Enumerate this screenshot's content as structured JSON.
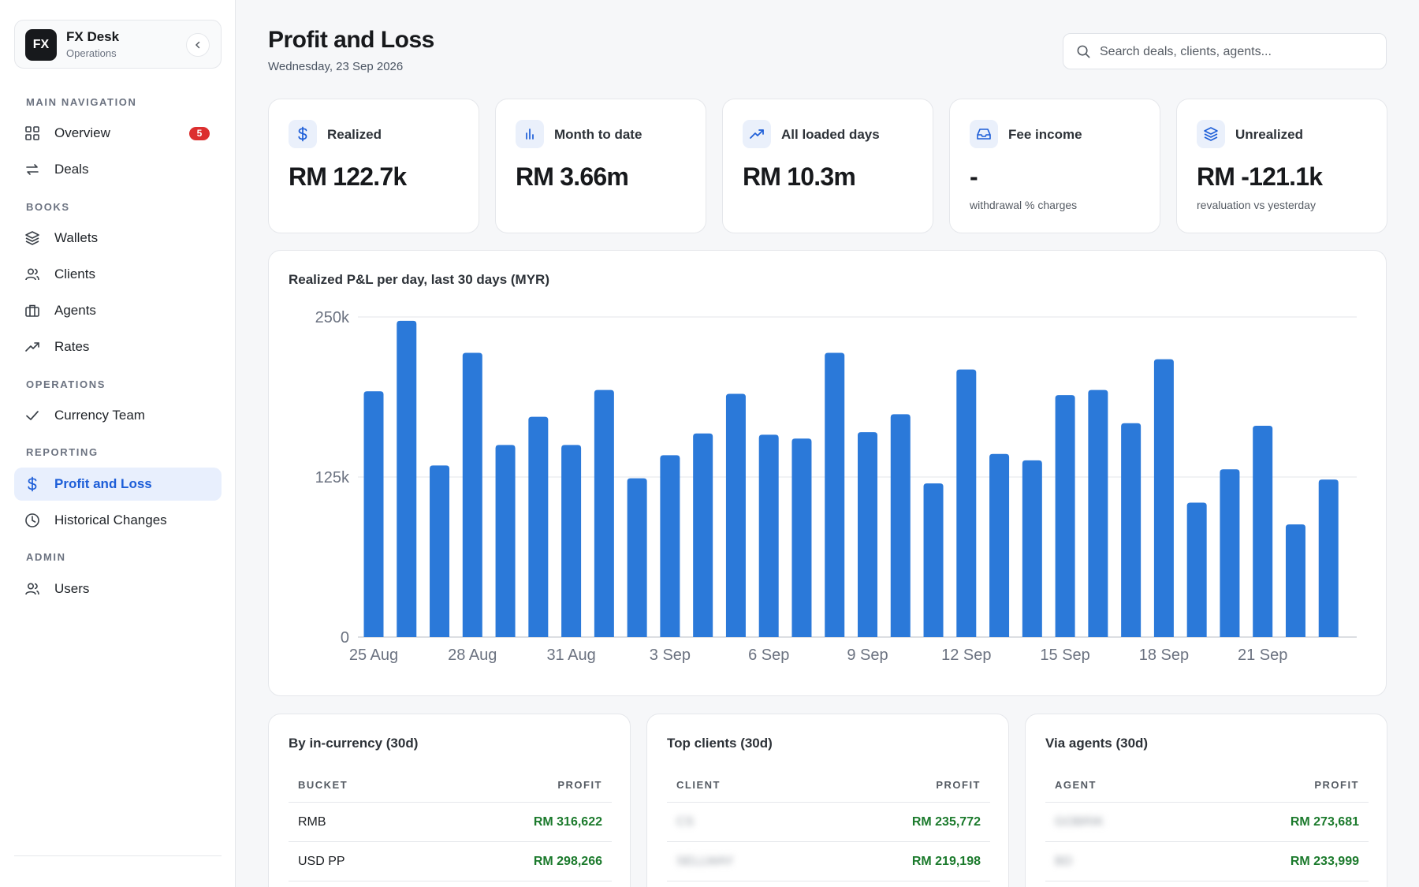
{
  "brand": {
    "logo": "FX",
    "name": "FX Desk",
    "subtitle": "Operations"
  },
  "sidebar": {
    "sections": [
      {
        "label": "MAIN NAVIGATION"
      },
      {
        "label": "BOOKS"
      },
      {
        "label": "OPERATIONS"
      },
      {
        "label": "REPORTING"
      },
      {
        "label": "ADMIN"
      }
    ],
    "items": [
      {
        "label": "Overview",
        "icon": "grid-icon",
        "badge": "5"
      },
      {
        "label": "Deals",
        "icon": "swap-icon"
      },
      {
        "label": "Wallets",
        "icon": "layers-icon"
      },
      {
        "label": "Clients",
        "icon": "users-icon"
      },
      {
        "label": "Agents",
        "icon": "briefcase-icon"
      },
      {
        "label": "Rates",
        "icon": "trend-icon"
      },
      {
        "label": "Currency Team",
        "icon": "check-icon"
      },
      {
        "label": "Profit and Loss",
        "icon": "dollar-icon",
        "active": true
      },
      {
        "label": "Historical Changes",
        "icon": "clock-icon"
      },
      {
        "label": "Users",
        "icon": "users-icon"
      }
    ]
  },
  "header": {
    "title": "Profit and Loss",
    "date": "Wednesday, 23 Sep 2026",
    "search_placeholder": "Search deals, clients, agents..."
  },
  "kpis": [
    {
      "label": "Realized",
      "value": "RM 122.7k",
      "sub": "",
      "icon": "dollar-icon"
    },
    {
      "label": "Month to date",
      "value": "RM 3.66m",
      "sub": "",
      "icon": "bar-chart-icon"
    },
    {
      "label": "All loaded days",
      "value": "RM 10.3m",
      "sub": "",
      "icon": "trend-icon"
    },
    {
      "label": "Fee income",
      "value": "-",
      "sub": "withdrawal % charges",
      "icon": "inbox-icon"
    },
    {
      "label": "Unrealized",
      "value": "RM -121.1k",
      "sub": "revaluation vs yesterday",
      "icon": "layers-icon"
    }
  ],
  "colors": {
    "accent": "#1d5ed8",
    "bar": "#2b79d9",
    "profit": "#1b7a2c",
    "badge": "#dc2f2f"
  },
  "chart_data": {
    "type": "bar",
    "title": "Realized P&L per day, last 30 days (MYR)",
    "categories": [
      "25 Aug",
      "26 Aug",
      "27 Aug",
      "28 Aug",
      "29 Aug",
      "30 Aug",
      "31 Aug",
      "1 Sep",
      "2 Sep",
      "3 Sep",
      "4 Sep",
      "5 Sep",
      "6 Sep",
      "7 Sep",
      "8 Sep",
      "9 Sep",
      "10 Sep",
      "11 Sep",
      "12 Sep",
      "13 Sep",
      "14 Sep",
      "15 Sep",
      "16 Sep",
      "17 Sep",
      "18 Sep",
      "19 Sep",
      "20 Sep",
      "21 Sep",
      "22 Sep",
      "23 Sep"
    ],
    "tick_labels": [
      "25 Aug",
      "28 Aug",
      "31 Aug",
      "3 Sep",
      "6 Sep",
      "9 Sep",
      "12 Sep",
      "15 Sep",
      "18 Sep",
      "21 Sep"
    ],
    "values": [
      192000,
      247000,
      134000,
      222000,
      150000,
      172000,
      150000,
      193000,
      124000,
      142000,
      159000,
      190000,
      158000,
      155000,
      222000,
      160000,
      174000,
      120000,
      209000,
      143000,
      138000,
      189000,
      193000,
      167000,
      217000,
      105000,
      131000,
      165000,
      88000,
      123000
    ],
    "ylim": [
      0,
      250000
    ],
    "yticks": [
      "0",
      "125k",
      "250k"
    ],
    "grid": true
  },
  "tables": [
    {
      "title": "By in-currency (30d)",
      "col_left": "BUCKET",
      "col_right": "PROFIT",
      "rows": [
        {
          "name": "RMB",
          "profit": "RM 316,622",
          "blurred": false
        },
        {
          "name": "USD PP",
          "profit": "RM 298,266",
          "blurred": false
        }
      ]
    },
    {
      "title": "Top clients (30d)",
      "col_left": "CLIENT",
      "col_right": "PROFIT",
      "rows": [
        {
          "name": "CS",
          "profit": "RM 235,772",
          "blurred": true
        },
        {
          "name": "SELLWAY",
          "profit": "RM 219,198",
          "blurred": true
        }
      ]
    },
    {
      "title": "Via agents (30d)",
      "col_left": "AGENT",
      "col_right": "PROFIT",
      "rows": [
        {
          "name": "GOBRIK",
          "profit": "RM 273,681",
          "blurred": true
        },
        {
          "name": "BD",
          "profit": "RM 233,999",
          "blurred": true
        }
      ]
    }
  ]
}
